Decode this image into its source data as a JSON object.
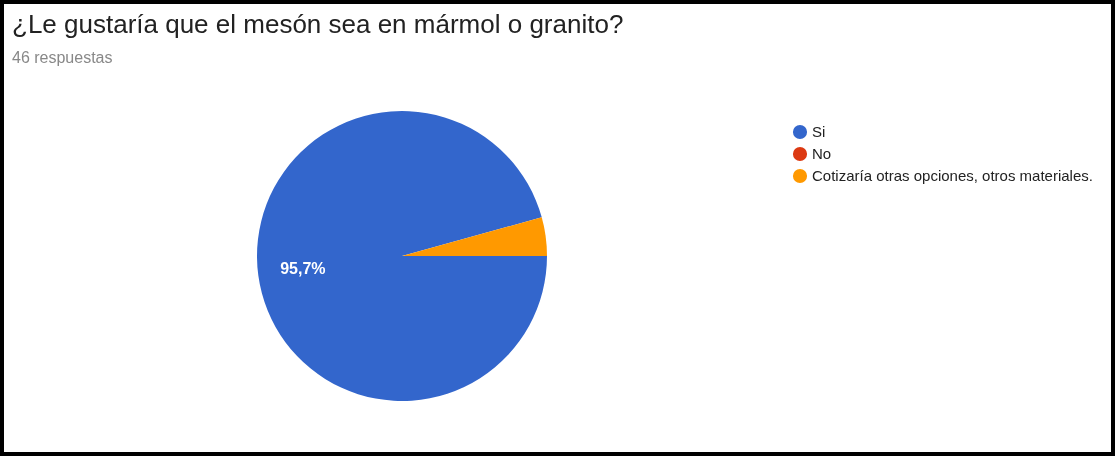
{
  "chart_data": {
    "type": "pie",
    "title": "¿Le gustaría que el mesón sea en mármol o granito?",
    "subtitle": "46 respuestas",
    "categories": [
      "Si",
      "No",
      "Cotizaría otras opciones, otros materiales."
    ],
    "values": [
      95.7,
      0,
      4.3
    ],
    "colors": [
      "#3366cc",
      "#dc3912",
      "#ff9900"
    ],
    "value_labels": [
      "95,7%",
      null,
      null
    ],
    "legend": "right"
  }
}
